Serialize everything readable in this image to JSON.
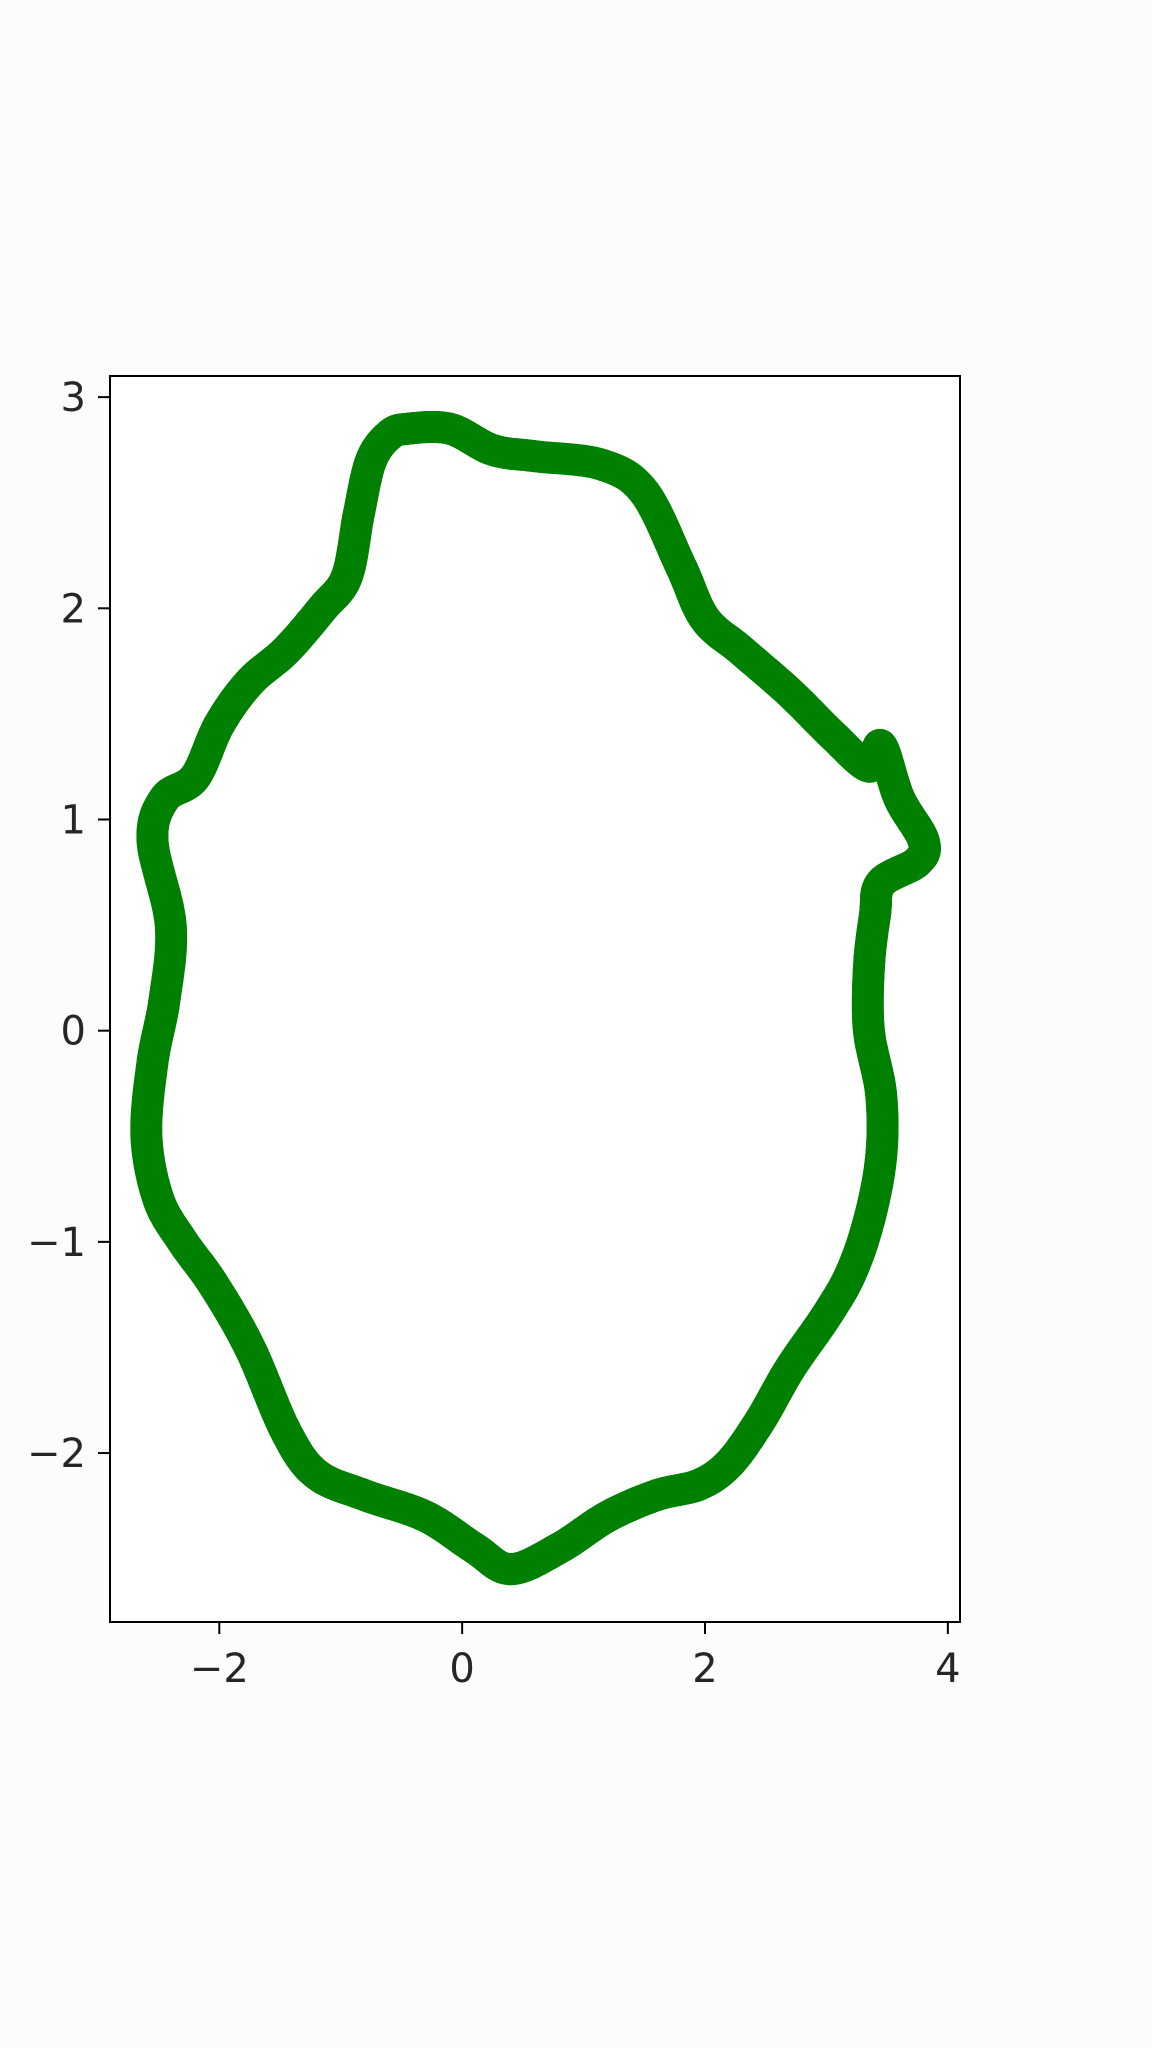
{
  "chart_data": {
    "type": "scatter",
    "title": "",
    "xlabel": "",
    "ylabel": "",
    "xlim": [
      -2.9,
      4.1
    ],
    "ylim": [
      -2.8,
      3.1
    ],
    "grid": false,
    "x_ticks": [
      {
        "value": -2,
        "label": "−2"
      },
      {
        "value": 0,
        "label": "0"
      },
      {
        "value": 2,
        "label": "2"
      },
      {
        "value": 4,
        "label": "4"
      }
    ],
    "y_ticks": [
      {
        "value": 3,
        "label": "3"
      },
      {
        "value": 2,
        "label": "2"
      },
      {
        "value": 1,
        "label": "1"
      },
      {
        "value": 0,
        "label": "0"
      },
      {
        "value": -1,
        "label": "−1"
      },
      {
        "value": -2,
        "label": "−2"
      }
    ],
    "series": [
      {
        "color": "#008000",
        "x": [
          -0.45,
          -0.1,
          0.25,
          0.6,
          1.15,
          1.5,
          1.8,
          2.0,
          2.3,
          2.7,
          3.05,
          3.35,
          3.45,
          3.6,
          3.8,
          3.75,
          3.45,
          3.4,
          3.35,
          3.35,
          3.45,
          3.45,
          3.35,
          3.2,
          3.0,
          2.7,
          2.45,
          2.2,
          1.95,
          1.6,
          1.2,
          0.8,
          0.4,
          0.1,
          -0.3,
          -0.8,
          -1.2,
          -1.45,
          -1.75,
          -2.05,
          -2.3,
          -2.5,
          -2.6,
          -2.55,
          -2.45,
          -2.4,
          -2.55,
          -2.45,
          -2.2,
          -2.0,
          -1.75,
          -1.45,
          -1.15,
          -0.95,
          -0.85,
          -0.75,
          -0.6
        ],
        "y": [
          2.85,
          2.85,
          2.75,
          2.72,
          2.68,
          2.55,
          2.2,
          1.95,
          1.8,
          1.6,
          1.4,
          1.25,
          1.35,
          1.1,
          0.9,
          0.8,
          0.7,
          0.55,
          0.3,
          0.0,
          -0.3,
          -0.6,
          -0.9,
          -1.15,
          -1.35,
          -1.6,
          -1.85,
          -2.05,
          -2.15,
          -2.2,
          -2.3,
          -2.45,
          -2.55,
          -2.45,
          -2.3,
          -2.2,
          -2.1,
          -1.9,
          -1.5,
          -1.2,
          -1.0,
          -0.8,
          -0.5,
          -0.15,
          0.15,
          0.5,
          0.9,
          1.1,
          1.2,
          1.45,
          1.65,
          1.8,
          2.0,
          2.15,
          2.45,
          2.7,
          2.82
        ]
      }
    ]
  }
}
